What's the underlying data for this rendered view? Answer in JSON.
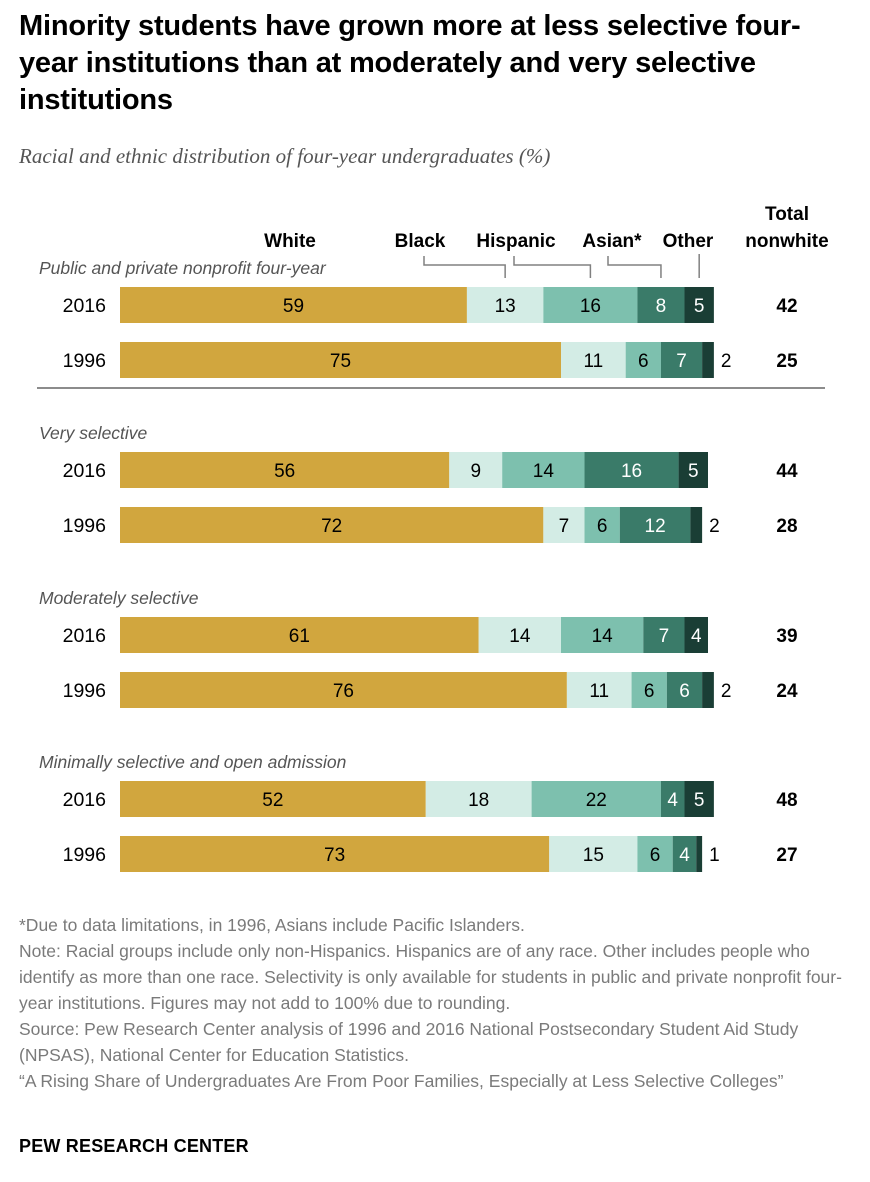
{
  "title": "Minority students have grown more at less selective four-year institutions than at moderately and very selective institutions",
  "subtitle": "Racial and ethnic distribution of four-year undergraduates (%)",
  "colors": {
    "white": "#D1A63E",
    "black": "#D3ECE5",
    "hispanic": "#7DC0AE",
    "asian": "#3A7B69",
    "other": "#1A3E35",
    "divider": "#8C8C8C",
    "leader": "#808080"
  },
  "chart_data": {
    "type": "bar",
    "stacked": true,
    "orientation": "horizontal",
    "unit": "%",
    "series_names": [
      "White",
      "Black",
      "Hispanic",
      "Asian*",
      "Other"
    ],
    "total_label": "Total nonwhite",
    "total_label_lines": [
      "Total",
      "nonwhite"
    ],
    "groups": [
      {
        "label": "Public and private nonprofit four-year",
        "rows": [
          {
            "year": "2016",
            "values": [
              59,
              13,
              16,
              8,
              5
            ],
            "total": 42
          },
          {
            "year": "1996",
            "values": [
              75,
              11,
              6,
              7,
              2
            ],
            "total": 25
          }
        ]
      },
      {
        "label": "Very selective",
        "rows": [
          {
            "year": "2016",
            "values": [
              56,
              9,
              14,
              16,
              5
            ],
            "total": 44
          },
          {
            "year": "1996",
            "values": [
              72,
              7,
              6,
              12,
              2
            ],
            "total": 28
          }
        ]
      },
      {
        "label": "Moderately selective",
        "rows": [
          {
            "year": "2016",
            "values": [
              61,
              14,
              14,
              7,
              4
            ],
            "total": 39
          },
          {
            "year": "1996",
            "values": [
              76,
              11,
              6,
              6,
              2
            ],
            "total": 24
          }
        ]
      },
      {
        "label": "Minimally selective and open admission",
        "rows": [
          {
            "year": "2016",
            "values": [
              52,
              18,
              22,
              4,
              5
            ],
            "total": 48
          },
          {
            "year": "1996",
            "values": [
              73,
              15,
              6,
              4,
              1
            ],
            "total": 27
          }
        ]
      }
    ]
  },
  "notes": {
    "asterisk": "*Due to data limitations, in 1996, Asians include Pacific Islanders.",
    "note": "Note: Racial groups include only non-Hispanics. Hispanics are of any race. Other includes people who identify as more than one race. Selectivity is only available for students in public and private nonprofit four-year institutions. Figures may not add to 100% due to rounding.",
    "source": "Source: Pew Research Center analysis of 1996 and 2016 National Postsecondary Student Aid Study (NPSAS), National Center for Education Statistics.",
    "report": "“A Rising Share of Undergraduates Are From Poor Families, Especially at Less Selective Colleges”"
  },
  "brand": "PEW RESEARCH CENTER"
}
